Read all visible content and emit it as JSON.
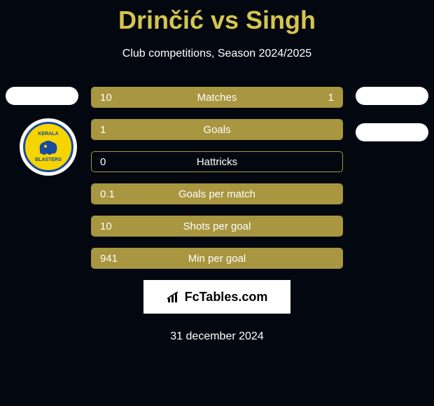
{
  "title": "Drinčić vs Singh",
  "subtitle": "Club competitions, Season 2024/2025",
  "club_logo": {
    "top": "KERALA",
    "bottom": "BLASTERS",
    "bg_color": "#f5d400",
    "border_color": "#1a4ba0"
  },
  "stats": [
    {
      "label": "Matches",
      "left_value": "10",
      "right_value": "1",
      "left_fill_pct": 75,
      "right_fill_pct": 25,
      "fill_mode": "split"
    },
    {
      "label": "Goals",
      "left_value": "1",
      "right_value": "",
      "left_fill_pct": 100,
      "right_fill_pct": 0,
      "fill_mode": "full"
    },
    {
      "label": "Hattricks",
      "left_value": "0",
      "right_value": "",
      "left_fill_pct": 0,
      "right_fill_pct": 0,
      "fill_mode": "none"
    },
    {
      "label": "Goals per match",
      "left_value": "0.1",
      "right_value": "",
      "left_fill_pct": 100,
      "right_fill_pct": 0,
      "fill_mode": "full"
    },
    {
      "label": "Shots per goal",
      "left_value": "10",
      "right_value": "",
      "left_fill_pct": 100,
      "right_fill_pct": 0,
      "fill_mode": "full"
    },
    {
      "label": "Min per goal",
      "left_value": "941",
      "right_value": "",
      "left_fill_pct": 100,
      "right_fill_pct": 0,
      "fill_mode": "full"
    }
  ],
  "footer": {
    "brand": "FcTables.com"
  },
  "date": "31 december 2024",
  "colors": {
    "background": "#030810",
    "accent": "#a89640",
    "title": "#d5c550",
    "text": "#ffffff"
  }
}
